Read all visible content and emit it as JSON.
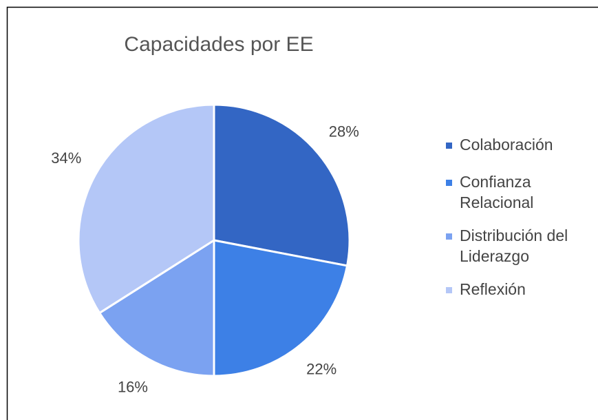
{
  "chart_data": {
    "type": "pie",
    "title": "Capacidades por EE",
    "categories": [
      "Colaboración",
      "Confianza Relacional",
      "Distribución del Liderazgo",
      "Reflexión"
    ],
    "values": [
      28,
      22,
      16,
      34
    ],
    "value_labels": [
      "28%",
      "22%",
      "16%",
      "34%"
    ],
    "colors": [
      "#3366c4",
      "#3d80e6",
      "#7ba2f1",
      "#b4c7f7"
    ],
    "legend": "right"
  }
}
